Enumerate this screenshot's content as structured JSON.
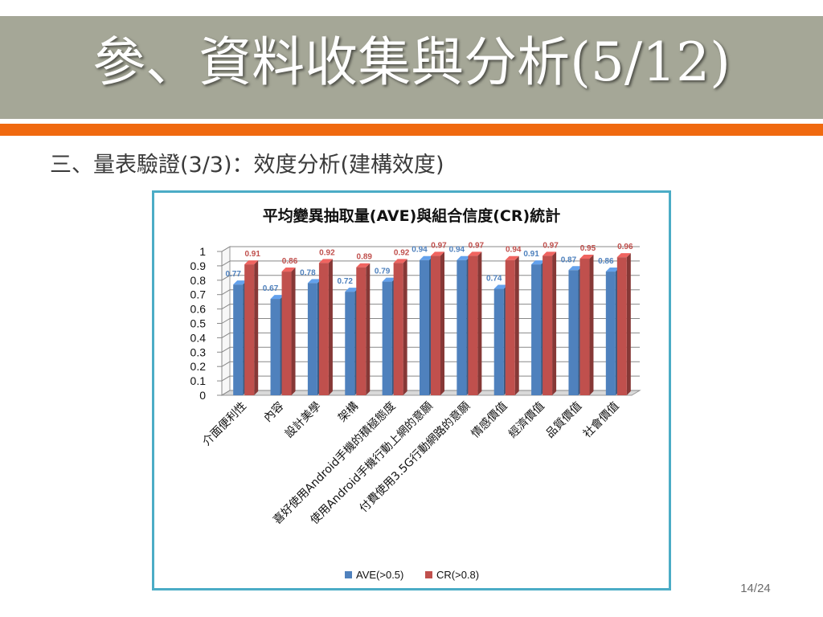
{
  "slide": {
    "title": "參、資料收集與分析(5/12)",
    "subtitle": "三、量表驗證(3/3)：效度分析(建構效度)",
    "page_number": "14/24",
    "colors": {
      "title_band": "#a5a797",
      "accent_bar": "#f0690f",
      "chart_border": "#4bacc6"
    }
  },
  "chart_data": {
    "type": "bar",
    "title": "平均變異抽取量(AVE)與組合信度(CR)統計",
    "categories": [
      "介面便利性",
      "內容",
      "設計美學",
      "架構",
      "喜好使用Android手機的積極態度",
      "使用Android手機行動上網的意願",
      "付費使用3.5G行動網路的意願",
      "情感價值",
      "經濟價值",
      "品質價值",
      "社會價值"
    ],
    "series": [
      {
        "name": "AVE(>0.5)",
        "color": "#4f81bd",
        "values": [
          0.77,
          0.67,
          0.78,
          0.72,
          0.79,
          0.94,
          0.94,
          0.74,
          0.91,
          0.87,
          0.86
        ],
        "labels": [
          "0.77",
          "0.67",
          "0.78",
          "0.72",
          "0.79",
          "0.94",
          "0.94",
          "0.74",
          "0.91",
          "0.87",
          "0.86"
        ]
      },
      {
        "name": "CR(>0.8)",
        "color": "#c0504d",
        "values": [
          0.91,
          0.86,
          0.92,
          0.89,
          0.92,
          0.97,
          0.97,
          0.94,
          0.97,
          0.95,
          0.96
        ],
        "labels": [
          "0.91",
          "0.86",
          "0.92",
          "0.89",
          "0.92",
          "0.97",
          "0.97",
          "0.94",
          "0.97",
          "0.95",
          "0.96"
        ]
      }
    ],
    "y_ticks": [
      "0",
      "0.1",
      "0.2",
      "0.3",
      "0.4",
      "0.5",
      "0.6",
      "0.7",
      "0.8",
      "0.9",
      "1"
    ],
    "ylim": [
      0,
      1
    ],
    "grid": true,
    "legend_position": "bottom"
  }
}
